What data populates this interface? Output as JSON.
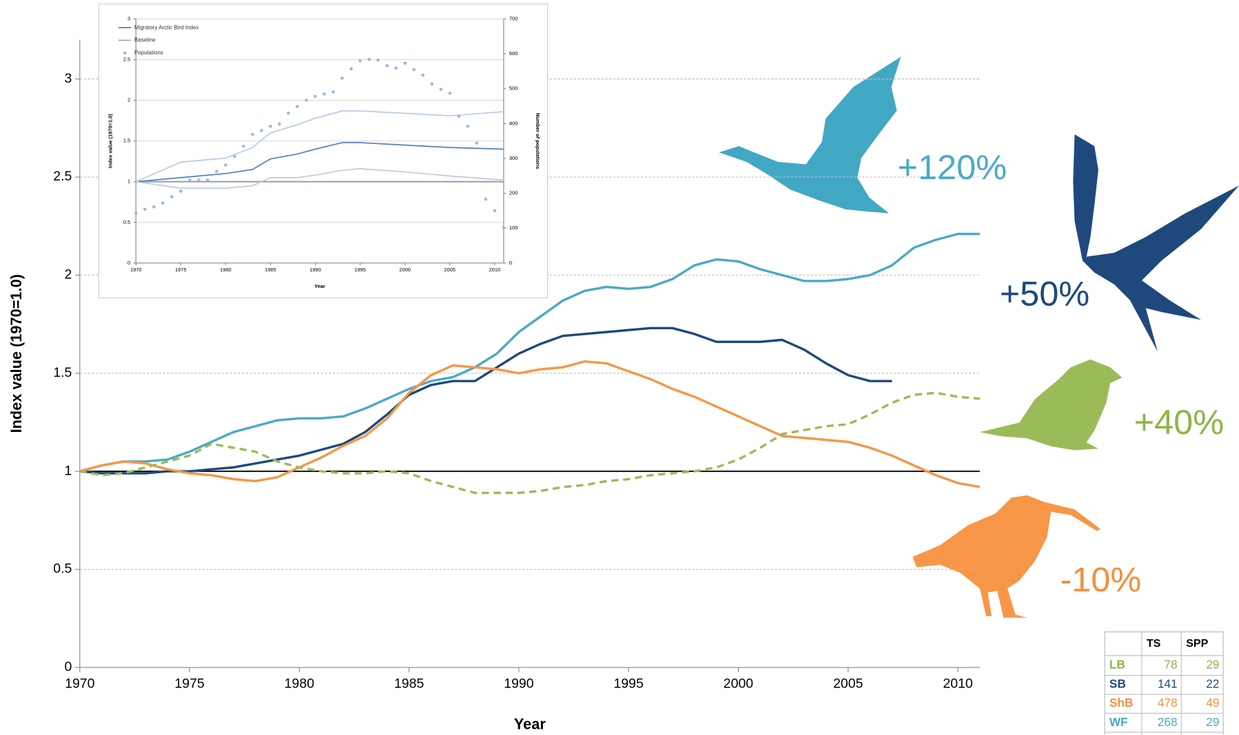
{
  "chart_data": [
    {
      "type": "line",
      "y_label": "Index value (1970=1.0)",
      "x_label": "Year",
      "x": [
        1970,
        1971,
        1972,
        1973,
        1974,
        1975,
        1976,
        1977,
        1978,
        1979,
        1980,
        1981,
        1982,
        1983,
        1984,
        1985,
        1986,
        1987,
        1988,
        1989,
        1990,
        1991,
        1992,
        1993,
        1994,
        1995,
        1996,
        1997,
        1998,
        1999,
        2000,
        2001,
        2002,
        2003,
        2004,
        2005,
        2006,
        2007,
        2008,
        2009,
        2010,
        2011
      ],
      "xlim": [
        1970,
        2011
      ],
      "xticks": [
        1970,
        1975,
        1980,
        1985,
        1990,
        1995,
        2000,
        2005,
        2010
      ],
      "ylim": [
        0,
        3.2
      ],
      "yticks": [
        0,
        0.5,
        1,
        1.5,
        2,
        2.5,
        3
      ],
      "grid": true,
      "baseline": 1,
      "series": [
        {
          "color": "#4aaac6",
          "line_style": "solid",
          "values": [
            1.0,
            1.03,
            1.05,
            1.05,
            1.06,
            1.1,
            1.15,
            1.2,
            1.23,
            1.26,
            1.27,
            1.27,
            1.28,
            1.32,
            1.37,
            1.42,
            1.46,
            1.48,
            1.53,
            1.6,
            1.71,
            1.79,
            1.87,
            1.92,
            1.94,
            1.93,
            1.94,
            1.98,
            2.05,
            2.08,
            2.07,
            2.03,
            2.0,
            1.97,
            1.97,
            1.98,
            2.0,
            2.05,
            2.14,
            2.18,
            2.21,
            2.21
          ]
        },
        {
          "color": "#1f497d",
          "line_style": "solid",
          "values": [
            1.0,
            0.99,
            0.99,
            0.99,
            1.0,
            1.0,
            1.01,
            1.02,
            1.04,
            1.06,
            1.08,
            1.11,
            1.14,
            1.2,
            1.29,
            1.39,
            1.44,
            1.46,
            1.46,
            1.53,
            1.6,
            1.65,
            1.69,
            1.7,
            1.71,
            1.72,
            1.73,
            1.73,
            1.7,
            1.66,
            1.66,
            1.66,
            1.67,
            1.62,
            1.55,
            1.49,
            1.46,
            1.46,
            null,
            null,
            null,
            null
          ]
        },
        {
          "color": "#f79646",
          "line_style": "solid",
          "values": [
            1.0,
            1.03,
            1.05,
            1.04,
            1.01,
            0.99,
            0.98,
            0.96,
            0.95,
            0.97,
            1.02,
            1.07,
            1.13,
            1.18,
            1.27,
            1.4,
            1.49,
            1.54,
            1.53,
            1.52,
            1.5,
            1.52,
            1.53,
            1.56,
            1.55,
            1.51,
            1.47,
            1.42,
            1.38,
            1.33,
            1.28,
            1.23,
            1.18,
            1.17,
            1.16,
            1.15,
            1.12,
            1.08,
            1.03,
            0.98,
            0.94,
            0.92
          ]
        },
        {
          "color": "#9bbb59",
          "line_style": "dashed",
          "values": [
            1.0,
            0.98,
            0.99,
            1.02,
            1.05,
            1.08,
            1.14,
            1.12,
            1.1,
            1.05,
            1.02,
            1.0,
            0.99,
            0.99,
            1.0,
            0.99,
            0.95,
            0.92,
            0.89,
            0.89,
            0.89,
            0.9,
            0.92,
            0.93,
            0.95,
            0.96,
            0.98,
            0.99,
            1.0,
            1.02,
            1.06,
            1.12,
            1.19,
            1.21,
            1.23,
            1.24,
            1.29,
            1.35,
            1.39,
            1.4,
            1.38,
            1.37
          ]
        }
      ],
      "annotations": [
        {
          "text": "+120%",
          "color": "#4aaac6"
        },
        {
          "text": "+50%",
          "color": "#1f497d"
        },
        {
          "text": "+40%",
          "color": "#8db545"
        },
        {
          "text": "-10%",
          "color": "#f48f3c"
        }
      ]
    },
    {
      "type": "line",
      "y_label": "Index value (1970=1.0)",
      "y2_label": "Number of populations",
      "x_label": "Year",
      "x": [
        1970,
        1975,
        1980,
        1983,
        1985,
        1988,
        1990,
        1993,
        1995,
        2000,
        2005,
        2011
      ],
      "xlim": [
        1970,
        2011
      ],
      "xticks": [
        1970,
        1975,
        1980,
        1985,
        1990,
        1995,
        2000,
        2005,
        2010
      ],
      "ylim": [
        0,
        3
      ],
      "yticks": [
        0,
        0.5,
        1,
        1.5,
        2,
        2.5,
        3
      ],
      "y2lim": [
        0,
        700
      ],
      "y2ticks": [
        0,
        100,
        200,
        300,
        400,
        500,
        600,
        700
      ],
      "grid": true,
      "baseline": {
        "name": "Baseline",
        "value": 1,
        "color": "#a6a6a6"
      },
      "series": [
        {
          "name": "Migratory Arctic Bird Index",
          "color": "#4f81bd",
          "values": [
            1.0,
            1.05,
            1.1,
            1.15,
            1.28,
            1.34,
            1.4,
            1.48,
            1.48,
            1.45,
            1.42,
            1.4
          ]
        },
        {
          "color": "#b8cce4",
          "values": [
            1.0,
            1.24,
            1.29,
            1.42,
            1.6,
            1.7,
            1.78,
            1.87,
            1.87,
            1.84,
            1.81,
            1.86
          ]
        },
        {
          "color": "#b8cce4",
          "values": [
            1.0,
            0.92,
            0.92,
            0.95,
            1.05,
            1.05,
            1.08,
            1.14,
            1.16,
            1.12,
            1.07,
            1.02
          ]
        },
        {
          "name": "Populations",
          "type": "scatter",
          "axis": "y2",
          "color": "#9ab7e0",
          "x": [
            1970,
            1971,
            1972,
            1973,
            1974,
            1975,
            1976,
            1977,
            1978,
            1979,
            1980,
            1981,
            1982,
            1983,
            1984,
            1985,
            1986,
            1987,
            1988,
            1989,
            1990,
            1991,
            1992,
            1993,
            1994,
            1995,
            1996,
            1997,
            1998,
            1999,
            2000,
            2001,
            2002,
            2003,
            2004,
            2005,
            2006,
            2007,
            2008,
            2009,
            2010,
            2011
          ],
          "values": [
            143,
            154,
            161,
            172,
            190,
            206,
            238,
            238,
            238,
            263,
            281,
            306,
            335,
            369,
            380,
            392,
            399,
            430,
            449,
            467,
            478,
            485,
            491,
            530,
            557,
            580,
            584,
            582,
            566,
            559,
            573,
            555,
            539,
            514,
            498,
            487,
            421,
            392,
            344,
            183,
            150,
            102
          ]
        }
      ]
    }
  ],
  "table": {
    "header": [
      "",
      "TS",
      "SPP"
    ],
    "rows": [
      [
        "LB",
        "78",
        "29"
      ],
      [
        "SB",
        "141",
        "22"
      ],
      [
        "ShB",
        "478",
        "49"
      ],
      [
        "WF",
        "268",
        "29"
      ]
    ],
    "row_colors": [
      "#8db545",
      "#1f497d",
      "#f48f3c",
      "#4aaac6"
    ]
  }
}
